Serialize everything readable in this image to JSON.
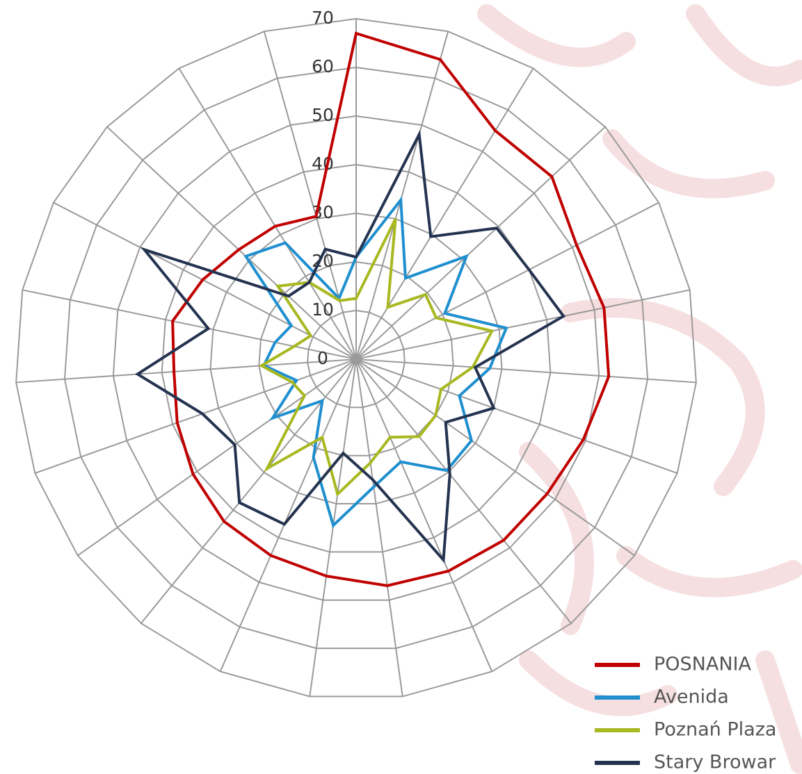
{
  "chart_data": {
    "type": "radar",
    "categories": [
      null,
      null,
      null,
      null,
      null,
      null,
      null,
      null,
      null,
      null,
      null,
      null,
      null,
      null,
      null,
      null,
      null,
      null,
      null,
      null,
      null,
      null,
      null
    ],
    "series": [
      {
        "name": "POSNANIA",
        "color": "#c00000",
        "values": [
          67,
          64,
          55,
          55,
          51,
          52,
          52,
          49.5,
          48,
          48,
          47.5,
          47,
          45,
          44,
          43,
          41,
          39,
          37.5,
          38.5,
          35.5,
          33,
          32,
          30.5
        ]
      },
      {
        "name": "Avenida",
        "color": "#1f8fcf",
        "values": [
          21,
          34,
          19.5,
          31,
          20.5,
          31.5,
          27.5,
          22.5,
          29,
          29.5,
          23,
          26.5,
          34.5,
          22,
          11,
          21,
          13,
          19,
          17,
          15,
          31,
          28,
          13
        ]
      },
      {
        "name": "Poznań Plaza",
        "color": "#a8b820",
        "values": [
          12.5,
          30,
          12.5,
          19.5,
          18.5,
          28.5,
          24,
          18.5,
          20,
          20.5,
          17.5,
          21.5,
          28,
          17.5,
          29,
          13,
          14,
          19.5,
          13,
          10.5,
          22,
          18.5,
          12.5
        ]
      },
      {
        "name": "Stary Browar",
        "color": "#243350",
        "values": [
          21,
          48,
          29.5,
          39.5,
          40,
          43.5,
          24.5,
          30,
          22.5,
          30.5,
          45,
          25,
          19.5,
          37,
          38,
          30.5,
          33.5,
          45,
          31,
          49,
          19,
          18.5,
          23.5
        ]
      }
    ],
    "ylim": [
      0,
      70
    ],
    "yticks": [
      0,
      10,
      20,
      30,
      40,
      50,
      60,
      70
    ],
    "grid": true,
    "legend": "bottom-right"
  }
}
